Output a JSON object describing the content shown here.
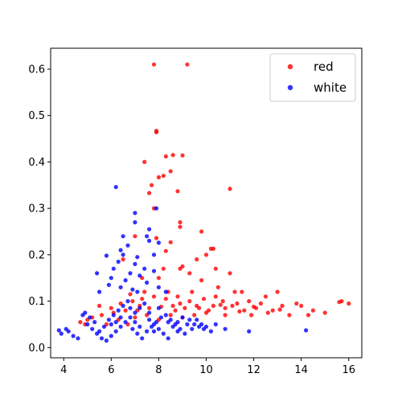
{
  "chart_data": {
    "type": "scatter",
    "title": "",
    "xlabel": "",
    "ylabel": "",
    "xlim": [
      3.45,
      16.55
    ],
    "ylim": [
      -0.022,
      0.645
    ],
    "x_ticks": [
      4,
      6,
      8,
      10,
      12,
      14,
      16
    ],
    "y_ticks": [
      0.0,
      0.1,
      0.2,
      0.3,
      0.4,
      0.5,
      0.6
    ],
    "grid": false,
    "legend_position": "top-right",
    "series": [
      {
        "name": "red",
        "color": "#ff0000",
        "points": [
          [
            7.8,
            0.61
          ],
          [
            9.2,
            0.61
          ],
          [
            7.9,
            0.467
          ],
          [
            7.9,
            0.464
          ],
          [
            8.6,
            0.415
          ],
          [
            8.3,
            0.412
          ],
          [
            9.0,
            0.414
          ],
          [
            7.4,
            0.4
          ],
          [
            8.5,
            0.38
          ],
          [
            8.0,
            0.367
          ],
          [
            8.2,
            0.37
          ],
          [
            8.8,
            0.337
          ],
          [
            7.6,
            0.333
          ],
          [
            11.0,
            0.342
          ],
          [
            7.7,
            0.35
          ],
          [
            7.8,
            0.3
          ],
          [
            8.9,
            0.27
          ],
          [
            8.9,
            0.26
          ],
          [
            9.8,
            0.25
          ],
          [
            7.0,
            0.24
          ],
          [
            7.9,
            0.236
          ],
          [
            8.5,
            0.227
          ],
          [
            8.3,
            0.208
          ],
          [
            10.2,
            0.213
          ],
          [
            10.3,
            0.213
          ],
          [
            10.0,
            0.2
          ],
          [
            6.5,
            0.19
          ],
          [
            9.6,
            0.19
          ],
          [
            8.2,
            0.17
          ],
          [
            8.9,
            0.17
          ],
          [
            9.0,
            0.175
          ],
          [
            10.4,
            0.17
          ],
          [
            9.3,
            0.16
          ],
          [
            11.0,
            0.16
          ],
          [
            7.3,
            0.15
          ],
          [
            8.0,
            0.15
          ],
          [
            9.8,
            0.145
          ],
          [
            10.5,
            0.13
          ],
          [
            11.2,
            0.12
          ],
          [
            11.5,
            0.12
          ],
          [
            13.0,
            0.12
          ],
          [
            12.5,
            0.11
          ],
          [
            13.8,
            0.095
          ],
          [
            14.0,
            0.09
          ],
          [
            14.5,
            0.08
          ],
          [
            15.0,
            0.075
          ],
          [
            15.6,
            0.098
          ],
          [
            15.7,
            0.1
          ],
          [
            16.0,
            0.095
          ],
          [
            14.3,
            0.07
          ],
          [
            13.2,
            0.09
          ],
          [
            12.8,
            0.08
          ],
          [
            12.0,
            0.088
          ],
          [
            11.8,
            0.1
          ],
          [
            11.3,
            0.095
          ],
          [
            10.8,
            0.085
          ],
          [
            10.6,
            0.092
          ],
          [
            10.1,
            0.08
          ],
          [
            9.6,
            0.09
          ],
          [
            9.1,
            0.085
          ],
          [
            8.6,
            0.09
          ],
          [
            8.1,
            0.088
          ],
          [
            7.6,
            0.085
          ],
          [
            7.1,
            0.08
          ],
          [
            6.6,
            0.08
          ],
          [
            6.1,
            0.075
          ],
          [
            5.6,
            0.07
          ],
          [
            5.2,
            0.065
          ],
          [
            4.9,
            0.05
          ],
          [
            4.7,
            0.055
          ],
          [
            5.0,
            0.06
          ],
          [
            5.5,
            0.09
          ],
          [
            6.0,
            0.085
          ],
          [
            6.4,
            0.095
          ],
          [
            6.9,
            0.1
          ],
          [
            7.3,
            0.105
          ],
          [
            7.8,
            0.11
          ],
          [
            8.3,
            0.105
          ],
          [
            8.8,
            0.11
          ],
          [
            9.3,
            0.1
          ],
          [
            9.9,
            0.105
          ],
          [
            10.4,
            0.11
          ],
          [
            11.1,
            0.09
          ],
          [
            12.3,
            0.095
          ],
          [
            13.5,
            0.07
          ],
          [
            8.0,
            0.06
          ],
          [
            8.5,
            0.07
          ],
          [
            9.0,
            0.065
          ],
          [
            9.5,
            0.07
          ],
          [
            10.0,
            0.075
          ],
          [
            7.5,
            0.07
          ],
          [
            7.0,
            0.065
          ],
          [
            10.8,
            0.07
          ],
          [
            11.6,
            0.08
          ],
          [
            12.6,
            0.075
          ],
          [
            11.9,
            0.07
          ],
          [
            9.4,
            0.12
          ],
          [
            8.4,
            0.12
          ],
          [
            7.4,
            0.12
          ],
          [
            6.8,
            0.115
          ],
          [
            10.7,
            0.1
          ],
          [
            12.1,
            0.085
          ],
          [
            13.1,
            0.082
          ],
          [
            9.7,
            0.085
          ],
          [
            8.9,
            0.095
          ],
          [
            10.3,
            0.09
          ],
          [
            11.4,
            0.078
          ],
          [
            6.3,
            0.06
          ],
          [
            5.8,
            0.05
          ],
          [
            6.7,
            0.05
          ],
          [
            7.2,
            0.09
          ],
          [
            8.7,
            0.08
          ]
        ]
      },
      {
        "name": "white",
        "color": "#0000ff",
        "points": [
          [
            6.2,
            0.346
          ],
          [
            7.0,
            0.29
          ],
          [
            7.0,
            0.27
          ],
          [
            7.9,
            0.3
          ],
          [
            7.6,
            0.255
          ],
          [
            7.5,
            0.24
          ],
          [
            6.5,
            0.24
          ],
          [
            7.6,
            0.23
          ],
          [
            8.0,
            0.226
          ],
          [
            6.7,
            0.22
          ],
          [
            6.4,
            0.21
          ],
          [
            6.5,
            0.2
          ],
          [
            5.8,
            0.198
          ],
          [
            7.1,
            0.195
          ],
          [
            7.8,
            0.2
          ],
          [
            6.3,
            0.185
          ],
          [
            6.1,
            0.17
          ],
          [
            7.4,
            0.17
          ],
          [
            7.0,
            0.18
          ],
          [
            5.4,
            0.16
          ],
          [
            6.8,
            0.16
          ],
          [
            7.8,
            0.165
          ],
          [
            6.0,
            0.15
          ],
          [
            6.6,
            0.145
          ],
          [
            7.2,
            0.155
          ],
          [
            5.9,
            0.135
          ],
          [
            6.4,
            0.13
          ],
          [
            7.1,
            0.12
          ],
          [
            7.5,
            0.14
          ],
          [
            8.0,
            0.13
          ],
          [
            5.5,
            0.12
          ],
          [
            6.9,
            0.125
          ],
          [
            8.3,
            0.12
          ],
          [
            3.8,
            0.037
          ],
          [
            3.9,
            0.03
          ],
          [
            4.1,
            0.04
          ],
          [
            4.2,
            0.035
          ],
          [
            4.4,
            0.025
          ],
          [
            4.6,
            0.02
          ],
          [
            4.8,
            0.07
          ],
          [
            4.9,
            0.075
          ],
          [
            5.0,
            0.05
          ],
          [
            5.2,
            0.04
          ],
          [
            5.4,
            0.03
          ],
          [
            5.6,
            0.02
          ],
          [
            5.8,
            0.015
          ],
          [
            6.0,
            0.025
          ],
          [
            6.2,
            0.035
          ],
          [
            6.4,
            0.045
          ],
          [
            6.6,
            0.055
          ],
          [
            6.8,
            0.065
          ],
          [
            7.0,
            0.075
          ],
          [
            7.2,
            0.085
          ],
          [
            7.4,
            0.095
          ],
          [
            7.6,
            0.06
          ],
          [
            7.8,
            0.05
          ],
          [
            8.0,
            0.04
          ],
          [
            8.2,
            0.03
          ],
          [
            8.4,
            0.02
          ],
          [
            8.6,
            0.045
          ],
          [
            8.8,
            0.055
          ],
          [
            9.0,
            0.065
          ],
          [
            9.2,
            0.05
          ],
          [
            9.4,
            0.04
          ],
          [
            9.6,
            0.06
          ],
          [
            9.8,
            0.05
          ],
          [
            10.0,
            0.045
          ],
          [
            10.2,
            0.035
          ],
          [
            10.4,
            0.05
          ],
          [
            10.8,
            0.04
          ],
          [
            11.8,
            0.035
          ],
          [
            14.2,
            0.037
          ],
          [
            5.1,
            0.065
          ],
          [
            5.3,
            0.055
          ],
          [
            5.7,
            0.045
          ],
          [
            5.9,
            0.06
          ],
          [
            6.1,
            0.07
          ],
          [
            6.3,
            0.08
          ],
          [
            6.5,
            0.09
          ],
          [
            6.7,
            0.1
          ],
          [
            6.9,
            0.04
          ],
          [
            7.1,
            0.03
          ],
          [
            7.3,
            0.02
          ],
          [
            7.5,
            0.035
          ],
          [
            7.7,
            0.045
          ],
          [
            7.9,
            0.055
          ],
          [
            8.1,
            0.065
          ],
          [
            8.3,
            0.07
          ],
          [
            8.5,
            0.06
          ],
          [
            8.7,
            0.05
          ],
          [
            8.9,
            0.04
          ],
          [
            9.1,
            0.03
          ],
          [
            9.3,
            0.06
          ],
          [
            9.5,
            0.05
          ],
          [
            9.7,
            0.045
          ],
          [
            9.9,
            0.04
          ],
          [
            6.0,
            0.05
          ],
          [
            6.4,
            0.065
          ],
          [
            6.8,
            0.085
          ],
          [
            7.2,
            0.045
          ],
          [
            7.6,
            0.075
          ],
          [
            8.0,
            0.085
          ],
          [
            8.4,
            0.055
          ],
          [
            8.8,
            0.035
          ],
          [
            5.5,
            0.035
          ],
          [
            6.2,
            0.055
          ],
          [
            7.0,
            0.055
          ],
          [
            7.8,
            0.035
          ]
        ]
      }
    ]
  }
}
